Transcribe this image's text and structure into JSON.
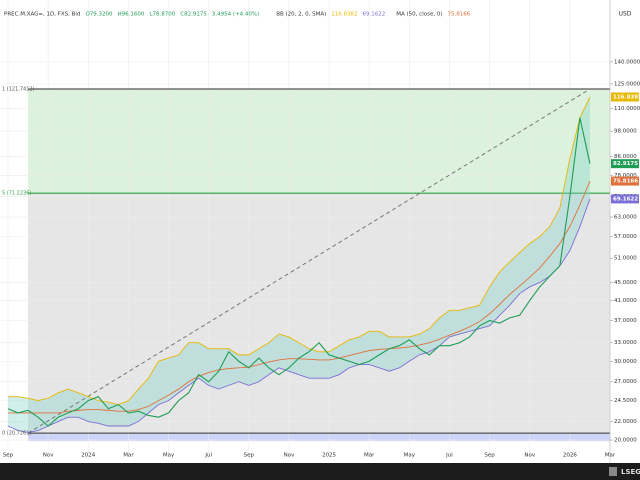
{
  "chart_data": {
    "type": "line",
    "title": "PREC.M.XAG=, 1D, FXS, Bid",
    "ohlc": [
      "O79.3200",
      "H96.1600",
      "L78.8700",
      "C82.9175",
      "3.4954 (+4.40%)"
    ],
    "indicators": [
      {
        "label": "BB (20, 2, 0, SMA)",
        "series": [
          2,
          3
        ]
      },
      {
        "label": "MA (50, close, 0)",
        "series": [
          1
        ]
      }
    ],
    "currency": "USD",
    "brand": "LSEG",
    "log_scale": true,
    "grid": true,
    "categories": [
      "Sep",
      null,
      null,
      null,
      "Nov",
      null,
      null,
      null,
      "2024",
      null,
      null,
      null,
      "Mar",
      null,
      null,
      null,
      "May",
      null,
      null,
      null,
      "Jul",
      null,
      null,
      null,
      "Sep",
      null,
      null,
      null,
      "Nov",
      null,
      null,
      null,
      "2025",
      null,
      null,
      null,
      "Mar",
      null,
      null,
      null,
      "May",
      null,
      null,
      null,
      "Jul",
      null,
      null,
      null,
      "Sep",
      null,
      null,
      null,
      "Nov",
      null,
      null,
      null,
      "2026",
      null,
      null,
      null,
      "Mar"
    ],
    "series": [
      {
        "name": "Close",
        "color": "#1f9d55",
        "values": [
          23.5,
          23,
          23.3,
          22.5,
          21.5,
          22.5,
          23,
          23.5,
          24.5,
          25,
          23.5,
          24,
          23,
          23.2,
          22.7,
          22.5,
          23,
          24.5,
          25.5,
          28,
          27,
          28.5,
          31.5,
          30,
          29,
          30.5,
          29,
          28,
          29,
          30.5,
          31.5,
          33,
          31,
          30.5,
          30,
          29.5,
          30,
          31,
          32,
          32.5,
          33.5,
          32,
          31,
          32.5,
          32.5,
          33,
          34,
          36,
          37,
          36.5,
          37.5,
          38,
          41,
          44,
          46.5,
          49,
          70,
          105,
          82.9175,
          null,
          null
        ]
      },
      {
        "name": "MA",
        "color": "#e0703a",
        "values": [
          23,
          23,
          23,
          23,
          23,
          23,
          23.2,
          23.3,
          23.4,
          23.4,
          23.3,
          23.2,
          23.2,
          23.4,
          23.8,
          24.5,
          25.2,
          26,
          27,
          27.8,
          28.3,
          28.7,
          28.9,
          29,
          29.1,
          29.5,
          29.9,
          30.2,
          30.4,
          30.4,
          30.3,
          30.2,
          30.2,
          30.5,
          30.9,
          31.3,
          31.7,
          31.9,
          32,
          32.1,
          32.3,
          32.6,
          33,
          33.6,
          34.3,
          35,
          35.8,
          36.8,
          38.3,
          40.2,
          42.3,
          44.2,
          46.2,
          48.5,
          51.5,
          55,
          60,
          67,
          75.8166,
          null,
          null
        ]
      },
      {
        "name": "BB Upper",
        "color": "#e6b800",
        "values": [
          25,
          25,
          24.8,
          24.5,
          24.8,
          25.5,
          26,
          25.5,
          25,
          24.5,
          24.3,
          24,
          24.5,
          26,
          27.5,
          30,
          30.5,
          31,
          33,
          33,
          32,
          32,
          32,
          31,
          31,
          32,
          33,
          34.5,
          34,
          33,
          32,
          31.5,
          31.5,
          32.5,
          33.5,
          34,
          35,
          35,
          34,
          34,
          34,
          34.5,
          35.5,
          37.5,
          39,
          39,
          39.5,
          40,
          44,
          47.5,
          50,
          52.5,
          55,
          57,
          60,
          66,
          85,
          105,
          116.8382,
          null,
          null
        ]
      },
      {
        "name": "BB Lower",
        "color": "#7b6fd6",
        "values": [
          21.5,
          21,
          20.8,
          21,
          21.5,
          22,
          22.5,
          22.5,
          22,
          21.8,
          21.5,
          21.5,
          21.5,
          22,
          23,
          24,
          24.5,
          25.5,
          26.5,
          27.5,
          26.5,
          26,
          26.5,
          27,
          26.5,
          27,
          28,
          29,
          28.5,
          28,
          27.5,
          27.5,
          27.5,
          28,
          29,
          29.5,
          29.5,
          29,
          28.5,
          29,
          30,
          31,
          31.5,
          32.5,
          34,
          34.5,
          35,
          35.5,
          36,
          38,
          40,
          42.5,
          44,
          45,
          46.5,
          49,
          53,
          60,
          69.1622,
          null,
          null
        ]
      }
    ],
    "levels": [
      {
        "label": "1 (121.7412)",
        "value": 121.7412,
        "color": "#555555"
      },
      {
        "label": "5 (71.2236)",
        "value": 71.2236,
        "color": "#2ea043"
      },
      {
        "label": "0 (20.7261)",
        "value": 20.7261,
        "color": "#555555"
      }
    ],
    "ylim": [
      19.2,
      184.7
    ],
    "yticks": [
      {
        "value": 20,
        "label": "20.0000"
      },
      {
        "value": 22,
        "label": "22.0000"
      },
      {
        "value": 24.5,
        "label": "24.5000"
      },
      {
        "value": 27,
        "label": "27.0000"
      },
      {
        "value": 30,
        "label": "30.0000"
      },
      {
        "value": 33,
        "label": "33.0000"
      },
      {
        "value": 37,
        "label": "37.0000"
      },
      {
        "value": 41,
        "label": "41.0000"
      },
      {
        "value": 45,
        "label": "45.0000"
      },
      {
        "value": 51,
        "label": "51.0000"
      },
      {
        "value": 57,
        "label": "57.0000"
      },
      {
        "value": 63,
        "label": "63.0000"
      },
      {
        "value": 70,
        "label": "70.0000"
      },
      {
        "value": 78,
        "label": "78.0000"
      },
      {
        "value": 86,
        "label": "86.0000"
      },
      {
        "value": 98,
        "label": "98.0000"
      },
      {
        "value": 110,
        "label": "110.0000"
      },
      {
        "value": 125,
        "label": "125.0000"
      },
      {
        "value": 140,
        "label": "140.0000"
      }
    ]
  }
}
